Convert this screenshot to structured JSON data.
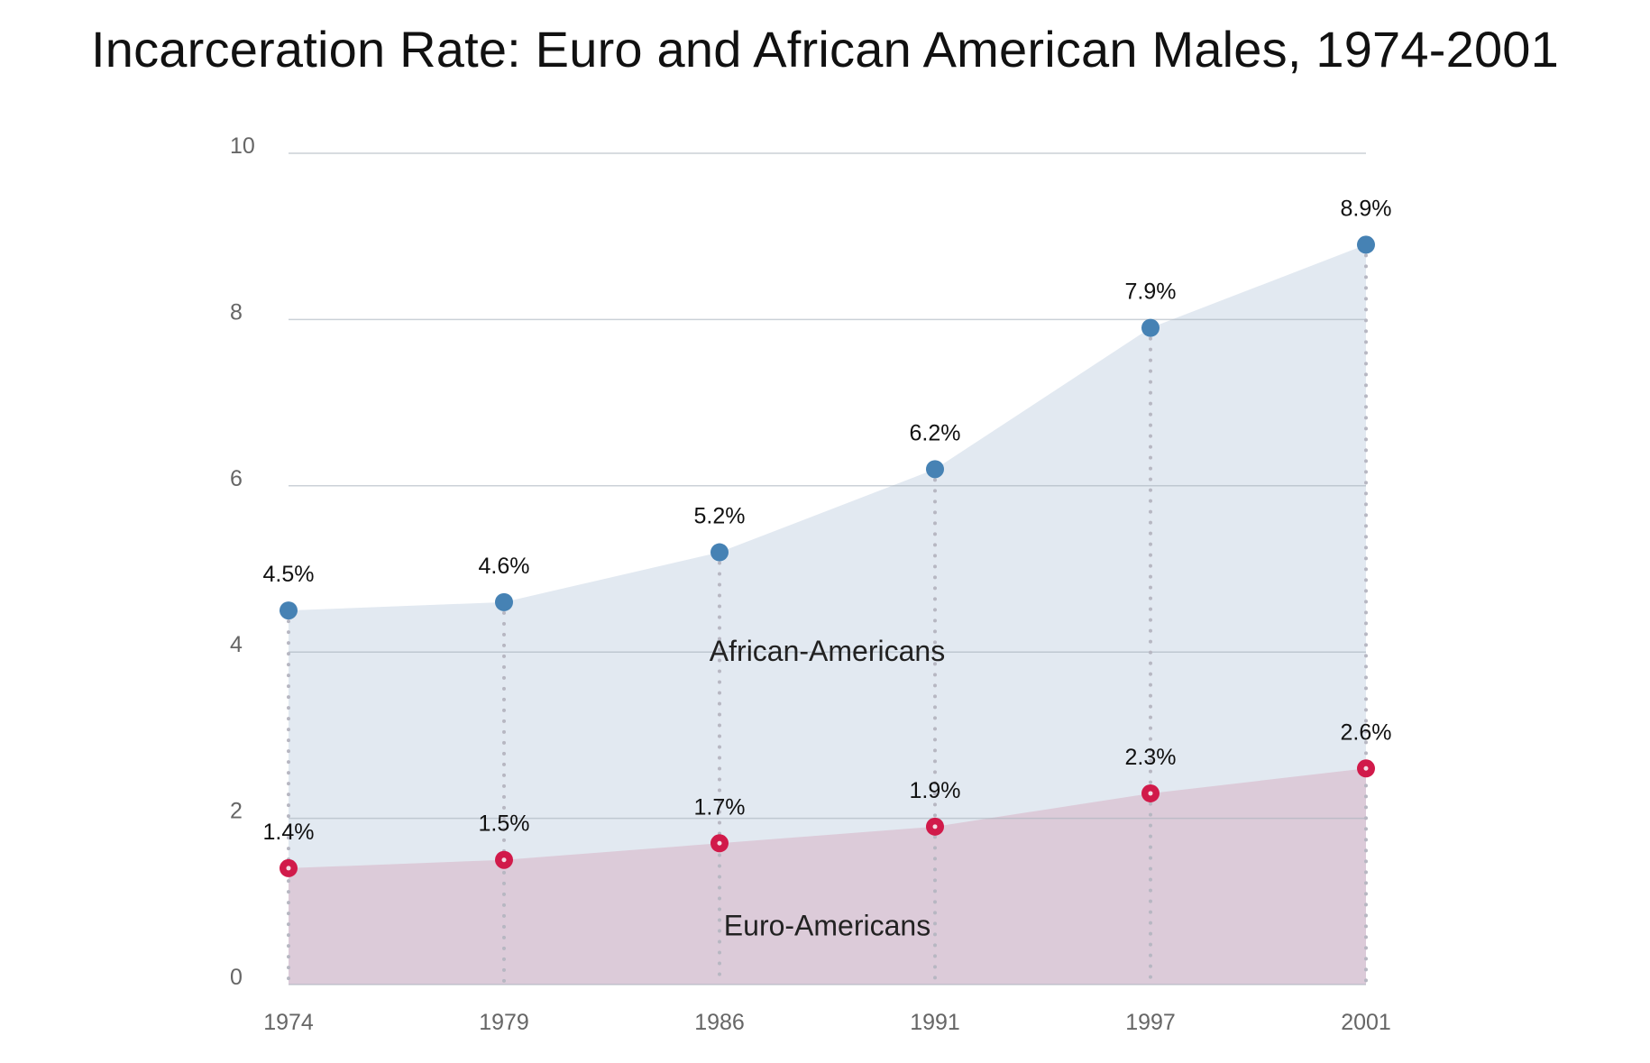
{
  "chart_data": {
    "type": "area",
    "title": "Incarceration Rate: Euro and African American Males, 1974-2001",
    "xlabel": "",
    "ylabel": "",
    "categories": [
      "1974",
      "1979",
      "1986",
      "1991",
      "1997",
      "2001"
    ],
    "ylim": [
      0,
      10
    ],
    "yticks": [
      0,
      2,
      4,
      6,
      8,
      10
    ],
    "grid": true,
    "legend": "none",
    "series": [
      {
        "name": "African-Americans",
        "values": [
          4.5,
          4.6,
          5.2,
          6.2,
          7.9,
          8.9
        ],
        "labels": [
          "4.5%",
          "4.6%",
          "5.2%",
          "6.2%",
          "7.9%",
          "8.9%"
        ],
        "area_color": "#e2e9f1",
        "point_color": "#4682b4"
      },
      {
        "name": "Euro-Americans",
        "values": [
          1.4,
          1.5,
          1.7,
          1.9,
          2.3,
          2.6
        ],
        "labels": [
          "1.4%",
          "1.5%",
          "1.7%",
          "1.9%",
          "2.3%",
          "2.6%"
        ],
        "area_color": "#dccbd9",
        "point_color": "#d11a4a"
      }
    ]
  }
}
